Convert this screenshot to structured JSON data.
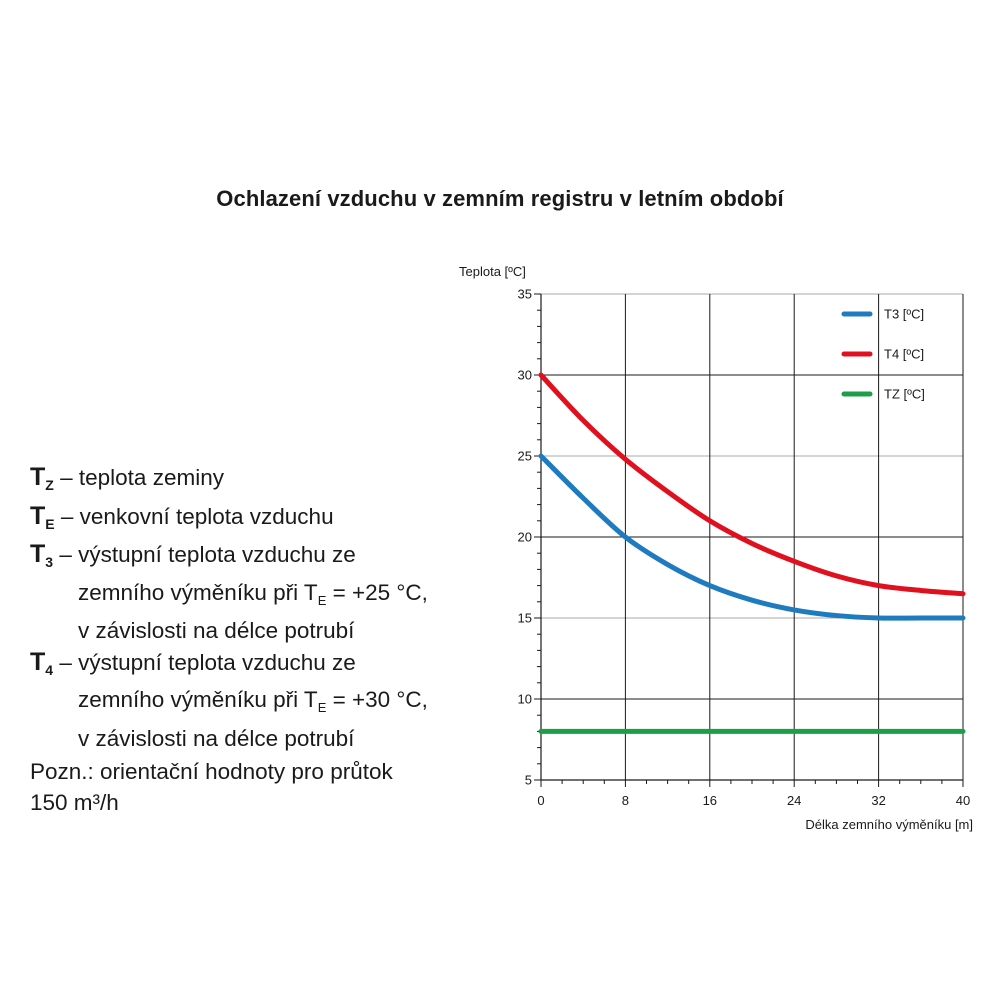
{
  "page_title": "Ochlazení vzduchu v zemním registru v letním období",
  "definitions": [
    {
      "symbol": "T",
      "subscript": "Z",
      "text": "teplota zeminy"
    },
    {
      "symbol": "T",
      "subscript": "E",
      "text": "venkovní teplota vzduchu"
    },
    {
      "symbol": "T",
      "subscript": "3",
      "text": "výstupní teplota vzduchu ze",
      "cont1_pre": "zemního výměníku při T",
      "cont1_sub": "E",
      "cont1_post": " = +25 °C,",
      "cont2": "v závislosti na délce potrubí"
    },
    {
      "symbol": "T",
      "subscript": "4",
      "text": "výstupní teplota vzduchu ze",
      "cont1_pre": "zemního výměníku při T",
      "cont1_sub": "E",
      "cont1_post": " = +30 °C,",
      "cont2": "v závislosti na délce potrubí"
    }
  ],
  "dash": "–",
  "note": {
    "line1": "Pozn.: orientační hodnoty pro průtok",
    "line2": "150 m³/h"
  },
  "chart_data": {
    "type": "line",
    "title": "",
    "xlabel": "Délka zemního výměníku [m]",
    "ylabel": "Teplota [ºC]",
    "xlim": [
      0,
      40
    ],
    "ylim": [
      5,
      35
    ],
    "xticks": [
      0,
      8,
      16,
      24,
      32,
      40
    ],
    "yticks": [
      5,
      10,
      15,
      20,
      25,
      30,
      35
    ],
    "grid": true,
    "legend_position": "top-right",
    "series": [
      {
        "name": "T3 [ºC]",
        "color": "#1f7bbf",
        "x": [
          0,
          4,
          8,
          12,
          16,
          20,
          24,
          28,
          32,
          36,
          40
        ],
        "y": [
          25,
          22.4,
          20,
          18.3,
          17,
          16.1,
          15.5,
          15.15,
          15,
          15,
          15
        ]
      },
      {
        "name": "T4 [ºC]",
        "color": "#e0101f",
        "x": [
          0,
          4,
          8,
          12,
          16,
          20,
          24,
          28,
          32,
          36,
          40
        ],
        "y": [
          30,
          27.2,
          24.8,
          22.8,
          21,
          19.6,
          18.5,
          17.6,
          17,
          16.7,
          16.5
        ]
      },
      {
        "name": "TZ [ºC]",
        "color": "#1e9e49",
        "x": [
          0,
          40
        ],
        "y": [
          8,
          8
        ]
      }
    ]
  }
}
